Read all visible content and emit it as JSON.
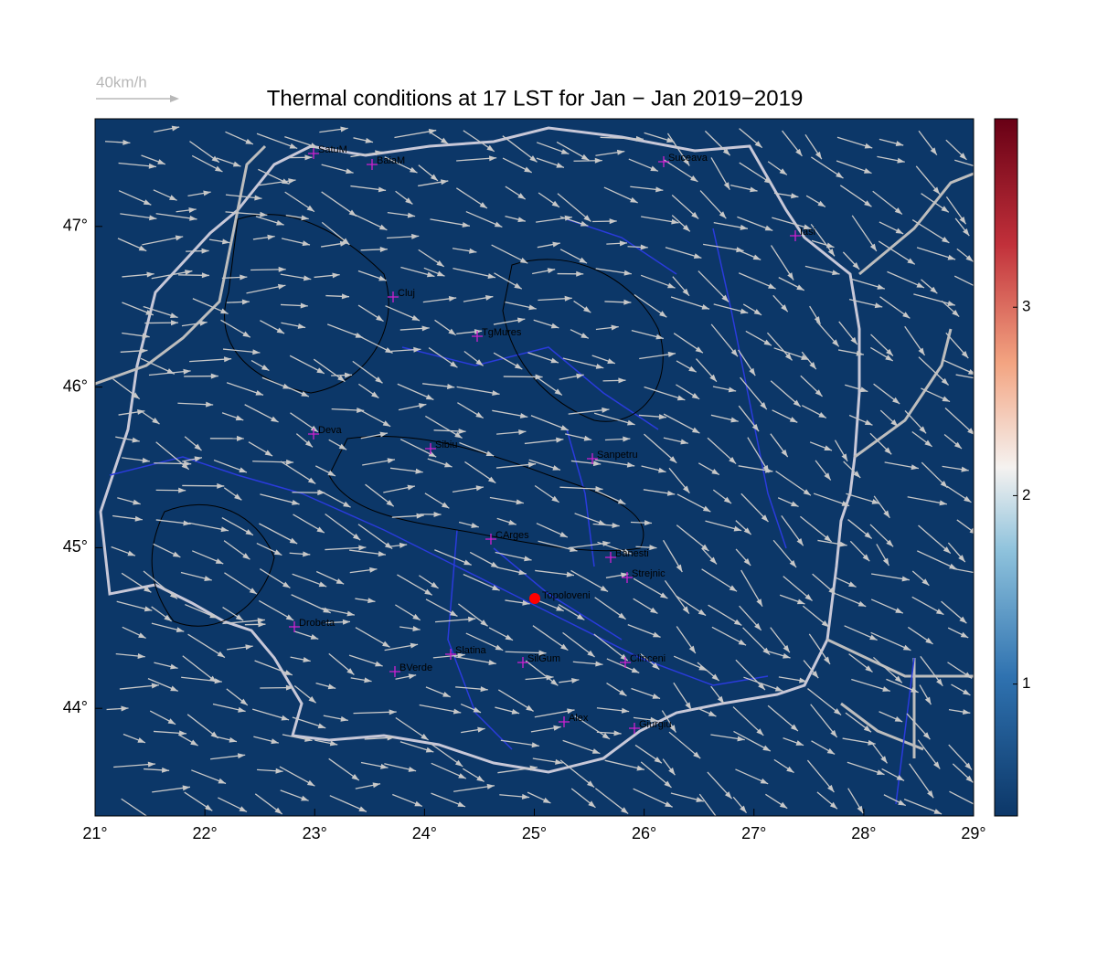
{
  "map": {
    "title": "Thermal conditions at 17 LST for Jan − Jan  2019−2019",
    "wind_legend": "40km/h",
    "xlim": [
      21,
      29
    ],
    "ylim": [
      43.33,
      47.67
    ],
    "xticks": [
      {
        "value": 21,
        "label": "21°"
      },
      {
        "value": 22,
        "label": "22°"
      },
      {
        "value": 23,
        "label": "23°"
      },
      {
        "value": 24,
        "label": "24°"
      },
      {
        "value": 25,
        "label": "25°"
      },
      {
        "value": 26,
        "label": "26°"
      },
      {
        "value": 27,
        "label": "27°"
      },
      {
        "value": 28,
        "label": "28°"
      },
      {
        "value": 29,
        "label": "29°"
      }
    ],
    "yticks": [
      {
        "value": 44,
        "label": "44°"
      },
      {
        "value": 45,
        "label": "45°"
      },
      {
        "value": 46,
        "label": "46°"
      },
      {
        "value": 47,
        "label": "47°"
      }
    ],
    "colorbar": {
      "clim": [
        0.3,
        4.0
      ],
      "ticks": [
        1,
        2,
        3
      ]
    },
    "background_color": "#0c3768",
    "cities": [
      "SatuM",
      "BaiaM",
      "Suceava",
      "Iasi",
      "Cluj",
      "TgMures",
      "Deva",
      "Sibiu",
      "Sanpetru",
      "CArges",
      "Banesti",
      "Strejnic",
      "Drobeta",
      "Slatina",
      "SilGum",
      "Clinceni",
      "BVerde",
      "Alex",
      "Giurgiu"
    ],
    "highlight": "Topoloveni"
  }
}
